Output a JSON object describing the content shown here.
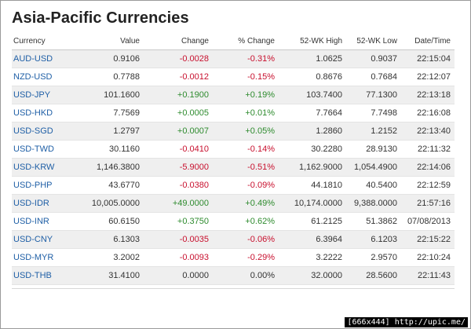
{
  "title": "Asia-Pacific Currencies",
  "columns": [
    "Currency",
    "Value",
    "Change",
    "% Change",
    "52-WK High",
    "52-WK Low",
    "Date/Time"
  ],
  "rows": [
    {
      "currency": "AUD-USD",
      "value": "0.9106",
      "change": "-0.0028",
      "pct": "-0.31%",
      "high": "1.0625",
      "low": "0.9037",
      "time": "22:15:04",
      "dir": "neg"
    },
    {
      "currency": "NZD-USD",
      "value": "0.7788",
      "change": "-0.0012",
      "pct": "-0.15%",
      "high": "0.8676",
      "low": "0.7684",
      "time": "22:12:07",
      "dir": "neg"
    },
    {
      "currency": "USD-JPY",
      "value": "101.1600",
      "change": "+0.1900",
      "pct": "+0.19%",
      "high": "103.7400",
      "low": "77.1300",
      "time": "22:13:18",
      "dir": "pos"
    },
    {
      "currency": "USD-HKD",
      "value": "7.7569",
      "change": "+0.0005",
      "pct": "+0.01%",
      "high": "7.7664",
      "low": "7.7498",
      "time": "22:16:08",
      "dir": "pos"
    },
    {
      "currency": "USD-SGD",
      "value": "1.2797",
      "change": "+0.0007",
      "pct": "+0.05%",
      "high": "1.2860",
      "low": "1.2152",
      "time": "22:13:40",
      "dir": "pos"
    },
    {
      "currency": "USD-TWD",
      "value": "30.1160",
      "change": "-0.0410",
      "pct": "-0.14%",
      "high": "30.2280",
      "low": "28.9130",
      "time": "22:11:32",
      "dir": "neg"
    },
    {
      "currency": "USD-KRW",
      "value": "1,146.3800",
      "change": "-5.9000",
      "pct": "-0.51%",
      "high": "1,162.9000",
      "low": "1,054.4900",
      "time": "22:14:06",
      "dir": "neg"
    },
    {
      "currency": "USD-PHP",
      "value": "43.6770",
      "change": "-0.0380",
      "pct": "-0.09%",
      "high": "44.1810",
      "low": "40.5400",
      "time": "22:12:59",
      "dir": "neg"
    },
    {
      "currency": "USD-IDR",
      "value": "10,005.0000",
      "change": "+49.0000",
      "pct": "+0.49%",
      "high": "10,174.0000",
      "low": "9,388.0000",
      "time": "21:57:16",
      "dir": "pos"
    },
    {
      "currency": "USD-INR",
      "value": "60.6150",
      "change": "+0.3750",
      "pct": "+0.62%",
      "high": "61.2125",
      "low": "51.3862",
      "time": "07/08/2013",
      "dir": "pos"
    },
    {
      "currency": "USD-CNY",
      "value": "6.1303",
      "change": "-0.0035",
      "pct": "-0.06%",
      "high": "6.3964",
      "low": "6.1203",
      "time": "22:15:22",
      "dir": "neg"
    },
    {
      "currency": "USD-MYR",
      "value": "3.2002",
      "change": "-0.0093",
      "pct": "-0.29%",
      "high": "3.2222",
      "low": "2.9570",
      "time": "22:10:24",
      "dir": "neg"
    },
    {
      "currency": "USD-THB",
      "value": "31.4100",
      "change": "0.0000",
      "pct": "0.00%",
      "high": "32.0000",
      "low": "28.5600",
      "time": "22:11:43",
      "dir": "flat"
    }
  ],
  "colors": {
    "negative": "#c8102e",
    "positive": "#2e8b2e",
    "link": "#1f5fa6",
    "stripe": "#efefef"
  },
  "watermark": "[666x444] http://upic.me/"
}
